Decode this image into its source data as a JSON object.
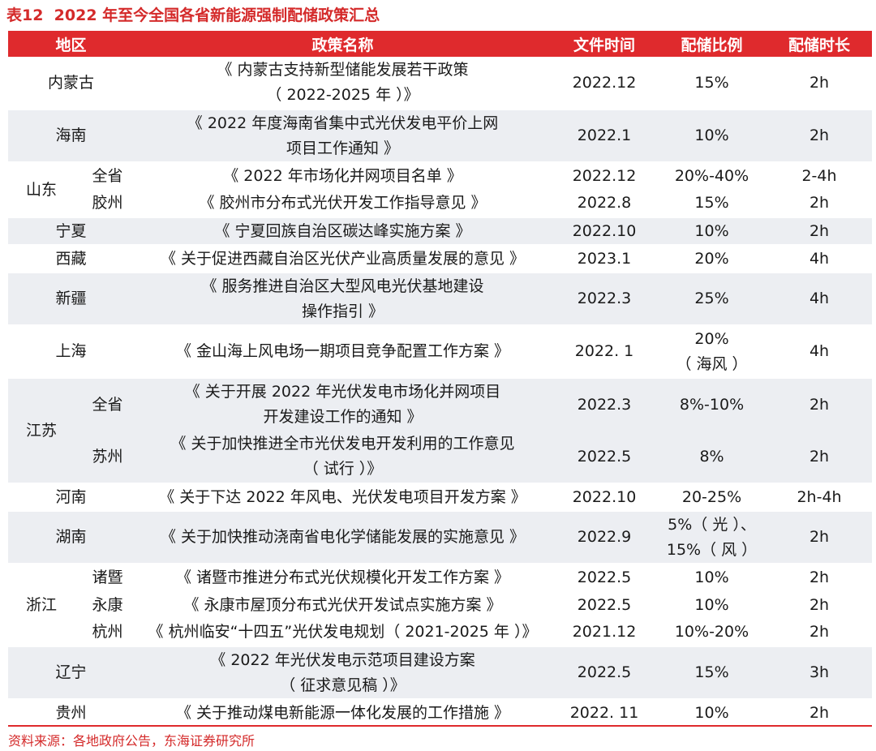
{
  "title": "表12  2022 年至今全国各省新能源强制配储政策汇总",
  "table": {
    "headers": [
      "地区",
      "政策名称",
      "文件时间",
      "配储比例",
      "配储时长"
    ],
    "groups": [
      {
        "region": "内蒙古",
        "rows": [
          {
            "policy": [
              "《 内蒙古支持新型储能发展若干政策",
              "（ 2022-2025 年 ）》"
            ],
            "date": "2022.12",
            "ratio": [
              "15%"
            ],
            "duration": "2h"
          }
        ]
      },
      {
        "region": "海南",
        "rows": [
          {
            "policy": [
              "《 2022 年度海南省集中式光伏发电平价上网",
              "项目工作通知 》"
            ],
            "date": "2022.1",
            "ratio": [
              "10%"
            ],
            "duration": "2h"
          }
        ]
      },
      {
        "region": "山东",
        "rows": [
          {
            "subregion": "全省",
            "policy": [
              "《 2022 年市场化并网项目名单 》"
            ],
            "date": "2022.12",
            "ratio": [
              "20%-40%"
            ],
            "duration": "2-4h"
          },
          {
            "subregion": "胶州",
            "policy": [
              "《 胶州市分布式光伏开发工作指导意见 》"
            ],
            "date": "2022.8",
            "ratio": [
              "15%"
            ],
            "duration": "2h"
          }
        ]
      },
      {
        "region": "宁夏",
        "rows": [
          {
            "policy": [
              "《 宁夏回族自治区碳达峰实施方案 》"
            ],
            "date": "2022.10",
            "ratio": [
              "10%"
            ],
            "duration": "2h"
          }
        ]
      },
      {
        "region": "西藏",
        "rows": [
          {
            "policy": [
              "《 关于促进西藏自治区光伏产业高质量发展的意见 》"
            ],
            "date": "2023.1",
            "ratio": [
              "20%"
            ],
            "duration": "4h"
          }
        ]
      },
      {
        "region": "新疆",
        "rows": [
          {
            "policy": [
              "《 服务推进自治区大型风电光伏基地建设",
              "操作指引 》"
            ],
            "date": "2022.3",
            "ratio": [
              "25%"
            ],
            "duration": "4h"
          }
        ]
      },
      {
        "region": "上海",
        "rows": [
          {
            "policy": [
              "《 金山海上风电场一期项目竞争配置工作方案 》"
            ],
            "date": "2022. 1",
            "ratio": [
              "20%",
              "（ 海风 ）"
            ],
            "duration": "4h"
          }
        ]
      },
      {
        "region": "江苏",
        "rows": [
          {
            "subregion": "全省",
            "policy": [
              "《 关于开展 2022 年光伏发电市场化并网项目",
              "开发建设工作的通知 》"
            ],
            "date": "2022.3",
            "ratio": [
              "8%-10%"
            ],
            "duration": "2h"
          },
          {
            "subregion": "苏州",
            "policy": [
              "《 关于加快推进全市光伏发电开发利用的工作意见",
              "（ 试行 ）》"
            ],
            "date": "2022.5",
            "ratio": [
              "8%"
            ],
            "duration": "2h"
          }
        ]
      },
      {
        "region": "河南",
        "rows": [
          {
            "policy": [
              "《 关于下达 2022 年风电、光伏发电项目开发方案 》"
            ],
            "date": "2022.10",
            "ratio": [
              "20-25%"
            ],
            "duration": "2h-4h"
          }
        ]
      },
      {
        "region": "湖南",
        "rows": [
          {
            "policy": [
              "《 关于加快推动浇南省电化学储能发展的实施意见 》"
            ],
            "date": "2022.9",
            "ratio": [
              "5%（ 光 ）、",
              "15%（ 风 ）"
            ],
            "duration": "2h"
          }
        ]
      },
      {
        "region": "浙江",
        "rows": [
          {
            "subregion": "诸暨",
            "policy": [
              "《 诸暨市推进分布式光伏规模化开发工作方案 》"
            ],
            "date": "2022.5",
            "ratio": [
              "10%"
            ],
            "duration": "2h"
          },
          {
            "subregion": "永康",
            "policy": [
              "《 永康市屋顶分布式光伏开发试点实施方案 》"
            ],
            "date": "2022.5",
            "ratio": [
              "10%"
            ],
            "duration": "2h"
          },
          {
            "subregion": "杭州",
            "policy": [
              "《 杭州临安“十四五”光伏发电规划（ 2021-2025 年 ）》"
            ],
            "date": "2021.12",
            "ratio": [
              "10%-20%"
            ],
            "duration": "2h"
          }
        ]
      },
      {
        "region": "辽宁",
        "rows": [
          {
            "policy": [
              "《 2022 年光伏发电示范项目建设方案",
              "（ 征求意见稿 ）》"
            ],
            "date": "2022.5",
            "ratio": [
              "15%"
            ],
            "duration": "3h"
          }
        ]
      },
      {
        "region": "贵州",
        "rows": [
          {
            "policy": [
              "《 关于推动煤电新能源一体化发展的工作措施 》"
            ],
            "date": "2022. 11",
            "ratio": [
              "10%"
            ],
            "duration": "2h"
          }
        ]
      }
    ]
  },
  "source": "资料来源：各地政府公告，东海证券研究所"
}
